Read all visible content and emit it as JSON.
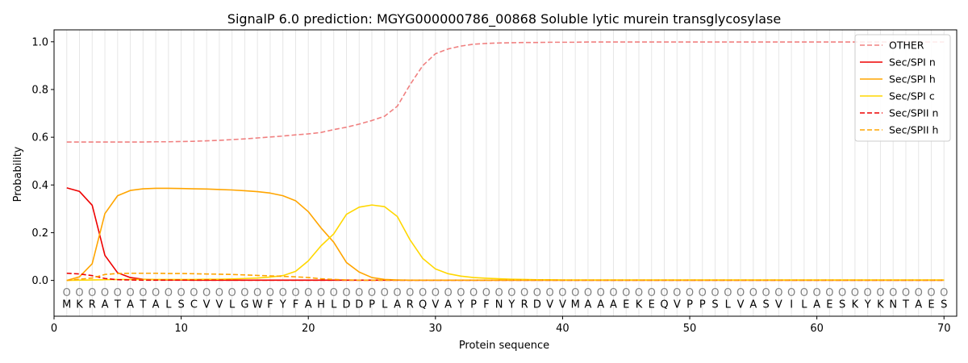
{
  "chart_data": {
    "type": "line",
    "title": "SignalP 6.0 prediction: MGYG000000786_00868 Soluble lytic murein transglycosylase",
    "xlabel": "Protein sequence",
    "ylabel": "Probability",
    "xlim": [
      0,
      71
    ],
    "ylim": [
      -0.15,
      1.05
    ],
    "xticks": [
      0,
      10,
      20,
      30,
      40,
      50,
      60,
      70
    ],
    "xtick_labels": [
      "0",
      "10",
      "20",
      "30",
      "40",
      "50",
      "60",
      "70"
    ],
    "yticks": [
      0.0,
      0.2,
      0.4,
      0.6,
      0.8,
      1.0
    ],
    "ytick_labels": [
      "0.0",
      "0.2",
      "0.4",
      "0.6",
      "0.8",
      "1.0"
    ],
    "grid": "vertical lines at each residue",
    "legend_position": "top-right",
    "sequence": [
      "M",
      "K",
      "R",
      "A",
      "T",
      "A",
      "T",
      "A",
      "L",
      "S",
      "C",
      "V",
      "V",
      "L",
      "G",
      "W",
      "F",
      "Y",
      "F",
      "A",
      "H",
      "L",
      "D",
      "D",
      "P",
      "L",
      "A",
      "R",
      "Q",
      "V",
      "A",
      "Y",
      "P",
      "F",
      "N",
      "Y",
      "R",
      "D",
      "V",
      "V",
      "M",
      "A",
      "A",
      "A",
      "E",
      "K",
      "E",
      "Q",
      "V",
      "P",
      "P",
      "S",
      "L",
      "V",
      "A",
      "S",
      "V",
      "I",
      "L",
      "A",
      "E",
      "S",
      "K",
      "Y",
      "K",
      "N",
      "T",
      "A",
      "E",
      "S"
    ],
    "position_marker": "O",
    "series": [
      {
        "name": "OTHER",
        "color": "#f08080",
        "dash": true,
        "values": [
          0.58,
          0.58,
          0.58,
          0.58,
          0.58,
          0.58,
          0.58,
          0.581,
          0.581,
          0.582,
          0.583,
          0.585,
          0.587,
          0.59,
          0.593,
          0.597,
          0.601,
          0.605,
          0.61,
          0.614,
          0.62,
          0.632,
          0.642,
          0.655,
          0.67,
          0.688,
          0.73,
          0.82,
          0.9,
          0.95,
          0.97,
          0.982,
          0.99,
          0.993,
          0.995,
          0.996,
          0.997,
          0.997,
          0.998,
          0.998,
          0.998,
          0.999,
          0.999,
          0.999,
          0.999,
          0.999,
          0.999,
          0.999,
          0.999,
          0.999,
          0.999,
          0.999,
          0.999,
          0.999,
          0.999,
          0.999,
          0.999,
          0.999,
          0.999,
          0.999,
          0.999,
          0.999,
          0.999,
          0.999,
          0.999,
          0.999,
          0.999,
          0.999,
          0.999,
          0.999
        ]
      },
      {
        "name": "Sec/SPI n",
        "color": "#ee0000",
        "dash": false,
        "values": [
          0.388,
          0.373,
          0.315,
          0.105,
          0.032,
          0.012,
          0.005,
          0.003,
          0.002,
          0.002,
          0.001,
          0.001,
          0.001,
          0.001,
          0.001,
          0.001,
          0.001,
          0.001,
          0.001,
          0.001,
          0.001,
          0.001,
          0.001,
          0.001,
          0.001,
          0.001,
          0.001,
          0.001,
          0.001,
          0.001,
          0.001,
          0.001,
          0.001,
          0.001,
          0.001,
          0.001,
          0.001,
          0.001,
          0.001,
          0.001,
          0.001,
          0.001,
          0.001,
          0.001,
          0.001,
          0.001,
          0.001,
          0.001,
          0.001,
          0.001,
          0.001,
          0.001,
          0.001,
          0.001,
          0.001,
          0.001,
          0.001,
          0.001,
          0.001,
          0.001,
          0.001,
          0.001,
          0.001,
          0.001,
          0.001,
          0.001,
          0.001,
          0.001,
          0.001,
          0.001
        ]
      },
      {
        "name": "Sec/SPI h",
        "color": "#ffa500",
        "dash": false,
        "values": [
          0.0,
          0.015,
          0.07,
          0.28,
          0.355,
          0.377,
          0.384,
          0.386,
          0.386,
          0.385,
          0.384,
          0.383,
          0.381,
          0.379,
          0.376,
          0.372,
          0.366,
          0.355,
          0.334,
          0.288,
          0.22,
          0.16,
          0.075,
          0.035,
          0.012,
          0.004,
          0.002,
          0.001,
          0.001,
          0.001,
          0.001,
          0.001,
          0.001,
          0.001,
          0.001,
          0.001,
          0.001,
          0.001,
          0.001,
          0.001,
          0.001,
          0.001,
          0.001,
          0.001,
          0.001,
          0.001,
          0.001,
          0.001,
          0.001,
          0.001,
          0.001,
          0.001,
          0.001,
          0.001,
          0.001,
          0.001,
          0.001,
          0.001,
          0.001,
          0.001,
          0.001,
          0.001,
          0.001,
          0.001,
          0.001,
          0.001,
          0.001,
          0.001,
          0.001,
          0.001
        ]
      },
      {
        "name": "Sec/SPI c",
        "color": "#ffd700",
        "dash": false,
        "values": [
          0.0,
          0.001,
          0.002,
          0.003,
          0.004,
          0.004,
          0.004,
          0.004,
          0.004,
          0.004,
          0.004,
          0.005,
          0.005,
          0.006,
          0.008,
          0.01,
          0.014,
          0.02,
          0.038,
          0.082,
          0.145,
          0.195,
          0.277,
          0.307,
          0.316,
          0.309,
          0.268,
          0.17,
          0.092,
          0.048,
          0.028,
          0.018,
          0.012,
          0.009,
          0.007,
          0.005,
          0.004,
          0.003,
          0.003,
          0.002,
          0.002,
          0.002,
          0.002,
          0.002,
          0.002,
          0.002,
          0.002,
          0.002,
          0.002,
          0.002,
          0.002,
          0.002,
          0.002,
          0.002,
          0.002,
          0.002,
          0.002,
          0.002,
          0.002,
          0.002,
          0.002,
          0.002,
          0.002,
          0.002,
          0.002,
          0.002,
          0.002,
          0.002,
          0.002,
          0.002
        ]
      },
      {
        "name": "Sec/SPII n",
        "color": "#ee0000",
        "dash": true,
        "values": [
          0.03,
          0.027,
          0.02,
          0.008,
          0.003,
          0.002,
          0.001,
          0.001,
          0.001,
          0.001,
          0.001,
          0.001,
          0.001,
          0.001,
          0.001,
          0.001,
          0.001,
          0.001,
          0.001,
          0.001,
          0.001,
          0.001,
          0.001,
          0.001,
          0.001,
          0.001,
          0.001,
          0.001,
          0.001,
          0.001,
          0.001,
          0.001,
          0.001,
          0.001,
          0.001,
          0.001,
          0.001,
          0.001,
          0.001,
          0.001,
          0.001,
          0.001,
          0.001,
          0.001,
          0.001,
          0.001,
          0.001,
          0.001,
          0.001,
          0.001,
          0.001,
          0.001,
          0.001,
          0.001,
          0.001,
          0.001,
          0.001,
          0.001,
          0.001,
          0.001,
          0.001,
          0.001,
          0.001,
          0.001,
          0.001,
          0.001,
          0.001,
          0.001,
          0.001,
          0.001
        ]
      },
      {
        "name": "Sec/SPII h",
        "color": "#ffa500",
        "dash": true,
        "values": [
          0.0,
          0.005,
          0.01,
          0.025,
          0.029,
          0.03,
          0.03,
          0.03,
          0.029,
          0.029,
          0.028,
          0.027,
          0.026,
          0.025,
          0.023,
          0.021,
          0.019,
          0.017,
          0.015,
          0.012,
          0.007,
          0.004,
          0.002,
          0.001,
          0.001,
          0.001,
          0.001,
          0.001,
          0.001,
          0.001,
          0.001,
          0.001,
          0.001,
          0.001,
          0.001,
          0.001,
          0.001,
          0.001,
          0.001,
          0.001,
          0.001,
          0.001,
          0.001,
          0.001,
          0.001,
          0.001,
          0.001,
          0.001,
          0.001,
          0.001,
          0.001,
          0.001,
          0.001,
          0.001,
          0.001,
          0.001,
          0.001,
          0.001,
          0.001,
          0.001,
          0.001,
          0.001,
          0.001,
          0.001,
          0.001,
          0.001,
          0.001,
          0.001,
          0.001,
          0.001
        ]
      }
    ]
  }
}
